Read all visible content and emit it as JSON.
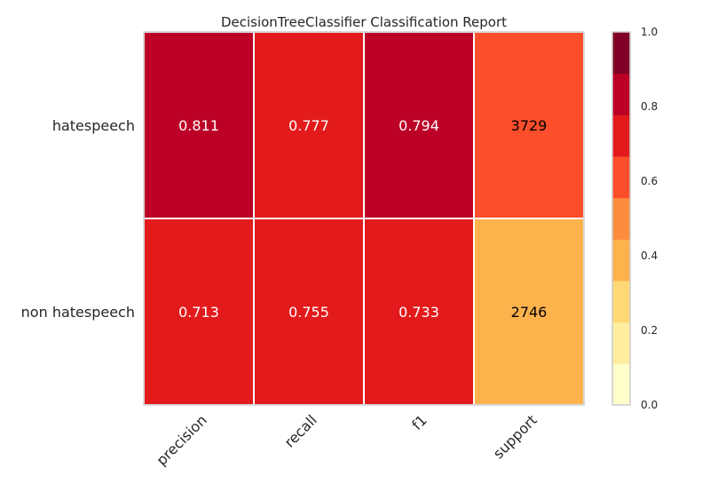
{
  "chart_data": {
    "type": "heatmap",
    "title": "DecisionTreeClassifier Classification Report",
    "rows": [
      "hatespeech",
      "non hatespeech"
    ],
    "columns": [
      "precision",
      "recall",
      "f1",
      "support"
    ],
    "cell_labels": [
      [
        "0.811",
        "0.777",
        "0.794",
        "3729"
      ],
      [
        "0.713",
        "0.755",
        "0.733",
        "2746"
      ]
    ],
    "cell_colors": [
      [
        "#bd0026",
        "#e31a1c",
        "#bd0026",
        "#fc4e2a"
      ],
      [
        "#e31a1c",
        "#e31a1c",
        "#e31a1c",
        "#feb24c"
      ]
    ],
    "cell_text_colors": [
      [
        "#ffffff",
        "#ffffff",
        "#ffffff",
        "#000000"
      ],
      [
        "#ffffff",
        "#ffffff",
        "#ffffff",
        "#000000"
      ]
    ],
    "colorbar": {
      "ticks": [
        "0.0",
        "0.2",
        "0.4",
        "0.6",
        "0.8",
        "1.0"
      ],
      "range": [
        0,
        1
      ],
      "colors": [
        "#ffffcc",
        "#ffeda0",
        "#fed976",
        "#feb24c",
        "#fd8d3c",
        "#fc4e2a",
        "#e31a1c",
        "#bd0026",
        "#800026"
      ]
    },
    "grid_line_color": "#ffffff",
    "frame_color": "#cccccc"
  }
}
